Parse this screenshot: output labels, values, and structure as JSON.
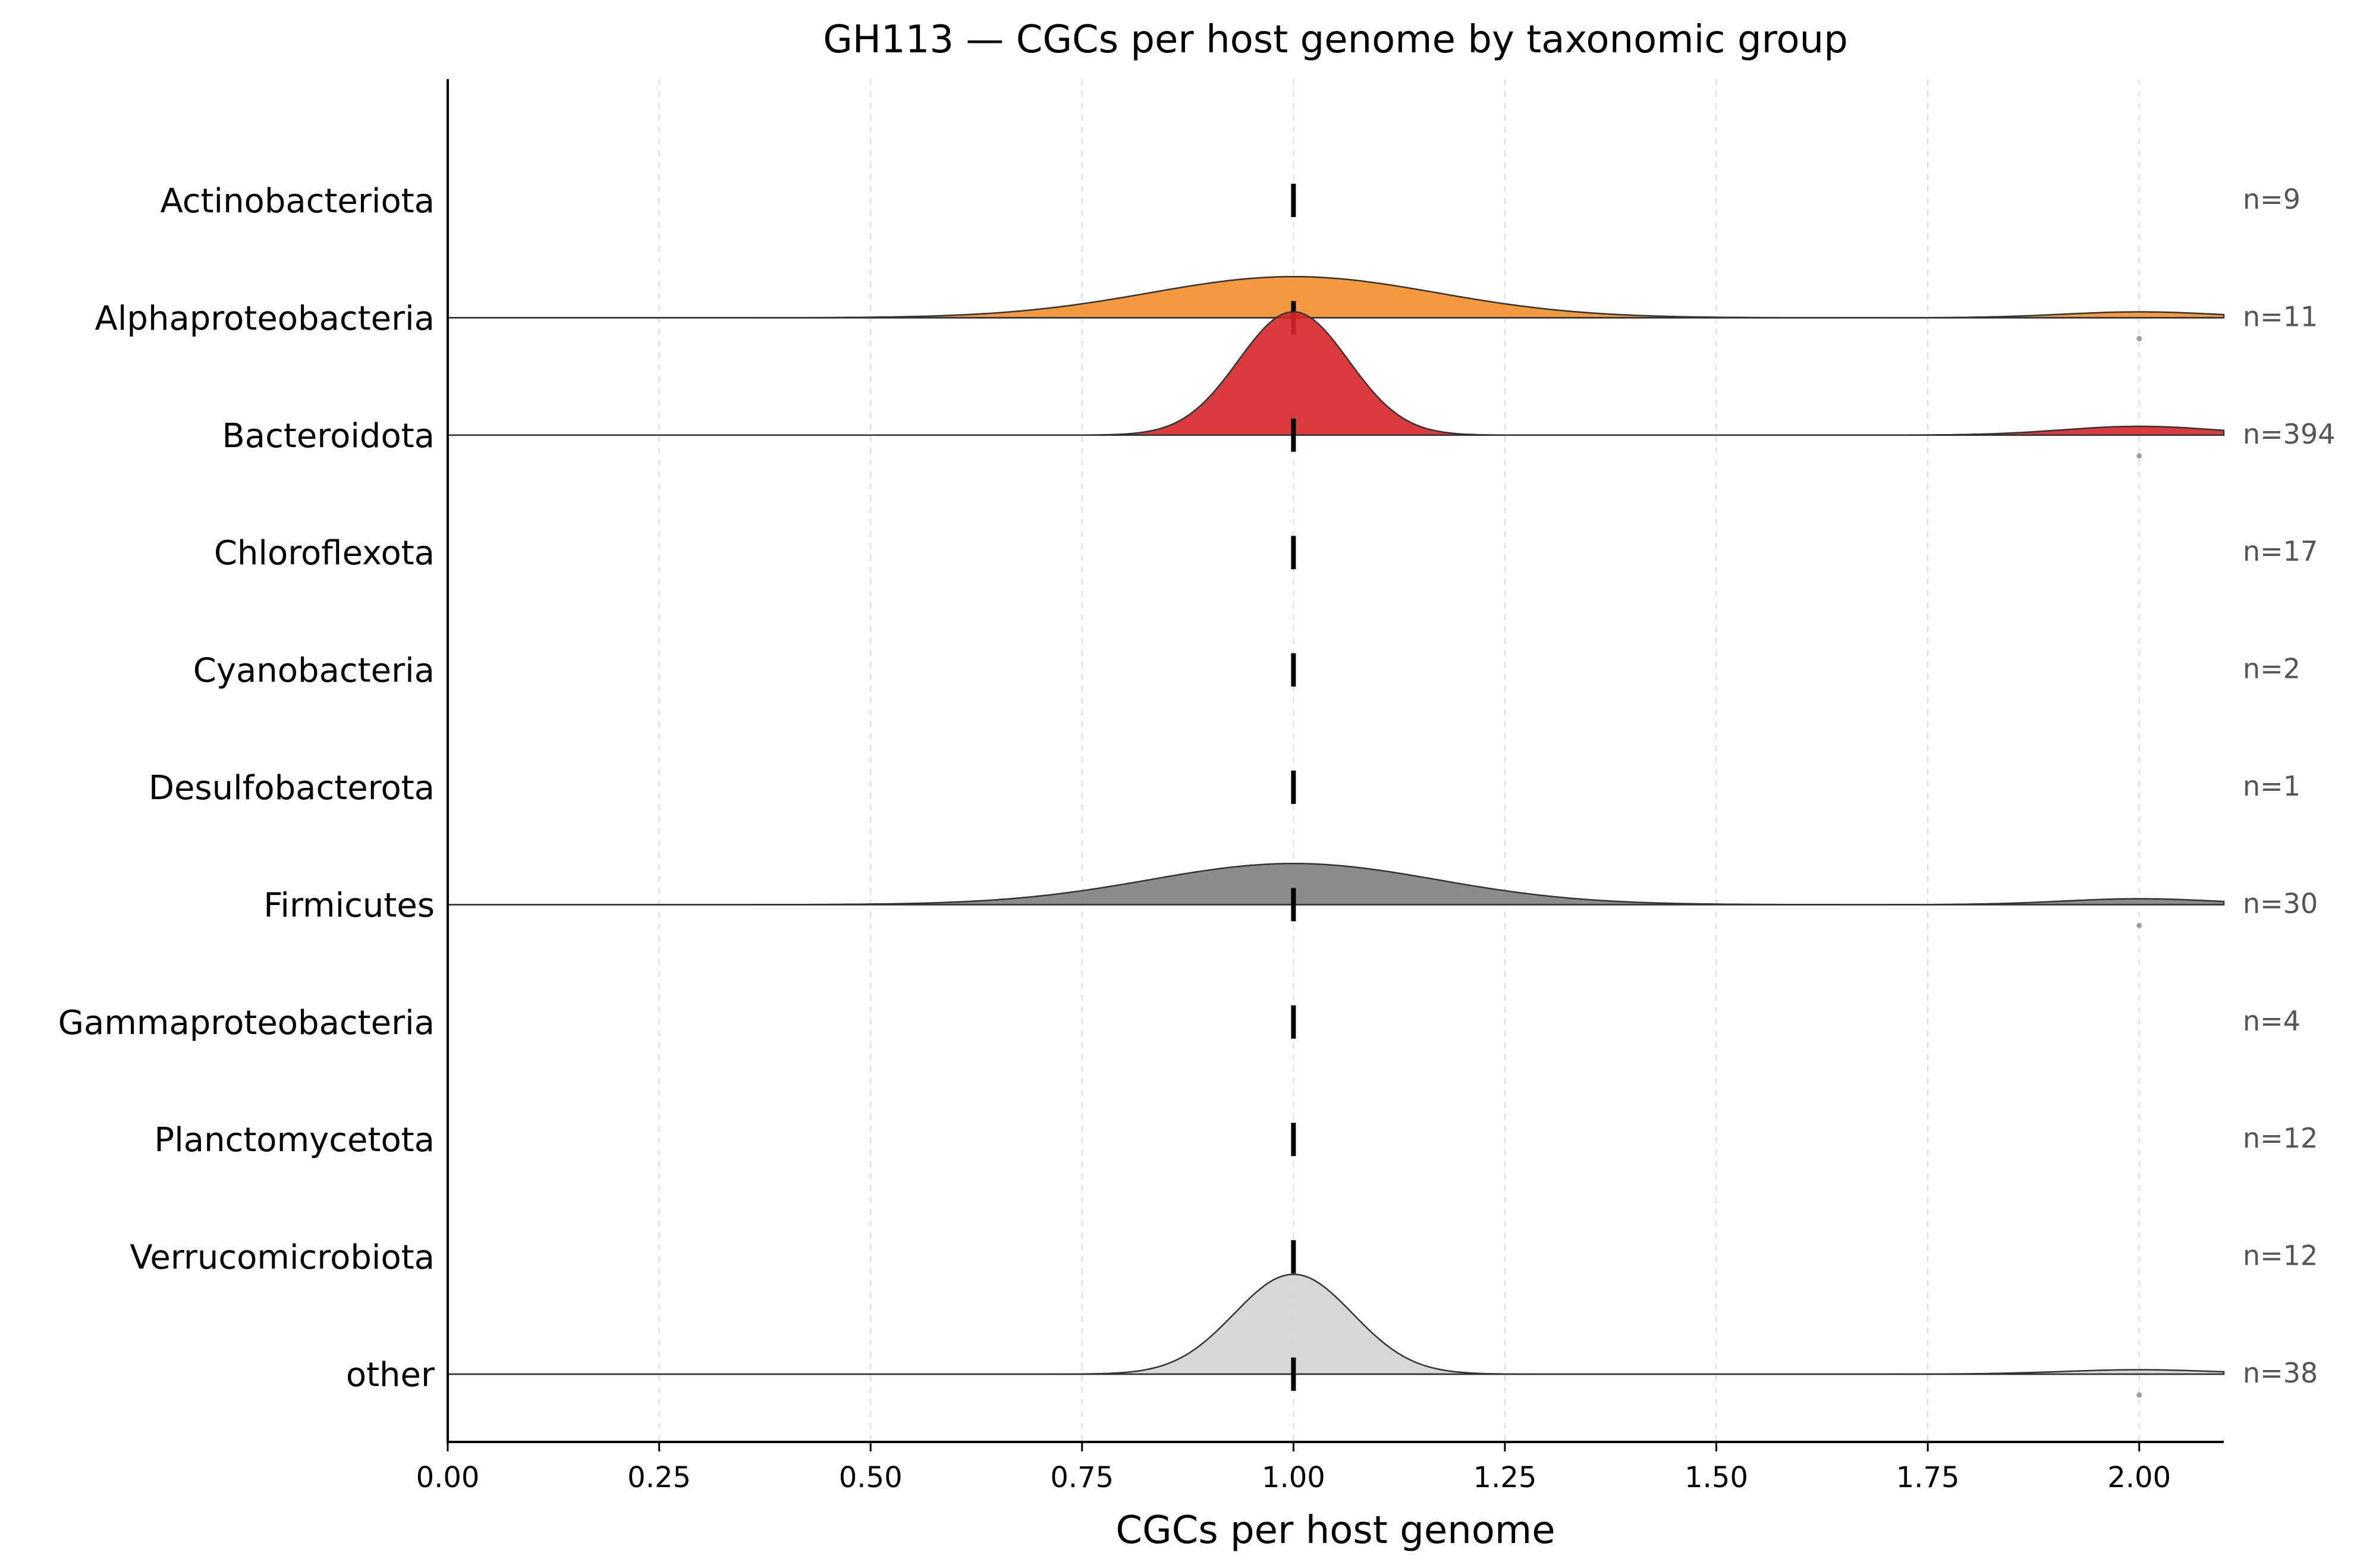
{
  "chart_data": {
    "type": "ridgeline",
    "title": "GH113 — CGCs per host genome by taxonomic group",
    "xlabel": "CGCs per host genome",
    "ylabel": "",
    "xlim": [
      0,
      2.1
    ],
    "x_ticks": [
      "0.00",
      "0.25",
      "0.50",
      "0.75",
      "1.00",
      "1.25",
      "1.50",
      "1.75",
      "2.00"
    ],
    "x_tick_values": [
      0,
      0.25,
      0.5,
      0.75,
      1.0,
      1.25,
      1.5,
      1.75,
      2.0
    ],
    "grid": "vertical dashed",
    "groups": [
      {
        "name": "Actinobacteriota",
        "n_label": "n=9",
        "n": 9,
        "median": 1.0,
        "color": "#1f77b4",
        "density": null,
        "outlier": null
      },
      {
        "name": "Alphaproteobacteria",
        "n_label": "n=11",
        "n": 11,
        "median": 1.0,
        "color": "#f28e2b",
        "density": {
          "peak_x": 1.0,
          "sd": 0.17,
          "height": 0.14,
          "tail_x": 2.0,
          "tail_height": 0.02
        },
        "outlier": 2.0
      },
      {
        "name": "Bacteroidota",
        "n_label": "n=394",
        "n": 394,
        "median": 1.0,
        "color": "#d62728",
        "density": {
          "peak_x": 1.0,
          "sd": 0.065,
          "height": 0.42,
          "tail_x": 2.0,
          "tail_height": 0.03
        },
        "outlier": 2.0
      },
      {
        "name": "Chloroflexota",
        "n_label": "n=17",
        "n": 17,
        "median": 1.0,
        "color": "#9467bd",
        "density": null,
        "outlier": null
      },
      {
        "name": "Cyanobacteria",
        "n_label": "n=2",
        "n": 2,
        "median": 1.0,
        "color": "#8c564b",
        "density": null,
        "outlier": null
      },
      {
        "name": "Desulfobacterota",
        "n_label": "n=1",
        "n": 1,
        "median": 1.0,
        "color": "#e377c2",
        "density": null,
        "outlier": null
      },
      {
        "name": "Firmicutes",
        "n_label": "n=30",
        "n": 30,
        "median": 1.0,
        "color": "#7f7f7f",
        "density": {
          "peak_x": 1.0,
          "sd": 0.17,
          "height": 0.14,
          "tail_x": 2.0,
          "tail_height": 0.02
        },
        "outlier": 2.0
      },
      {
        "name": "Gammaproteobacteria",
        "n_label": "n=4",
        "n": 4,
        "median": 1.0,
        "color": "#bcbd22",
        "density": null,
        "outlier": null
      },
      {
        "name": "Planctomycetota",
        "n_label": "n=12",
        "n": 12,
        "median": 1.0,
        "color": "#17becf",
        "density": null,
        "outlier": null
      },
      {
        "name": "Verrucomicrobiota",
        "n_label": "n=12",
        "n": 12,
        "median": 1.0,
        "color": "#2ca02c",
        "density": null,
        "outlier": null
      },
      {
        "name": "other",
        "n_label": "n=38",
        "n": 38,
        "median": 1.0,
        "color": "#d3d3d3",
        "density": {
          "peak_x": 1.0,
          "sd": 0.07,
          "height": 0.34,
          "tail_x": 2.0,
          "tail_height": 0.015
        },
        "outlier": 2.0
      }
    ]
  }
}
